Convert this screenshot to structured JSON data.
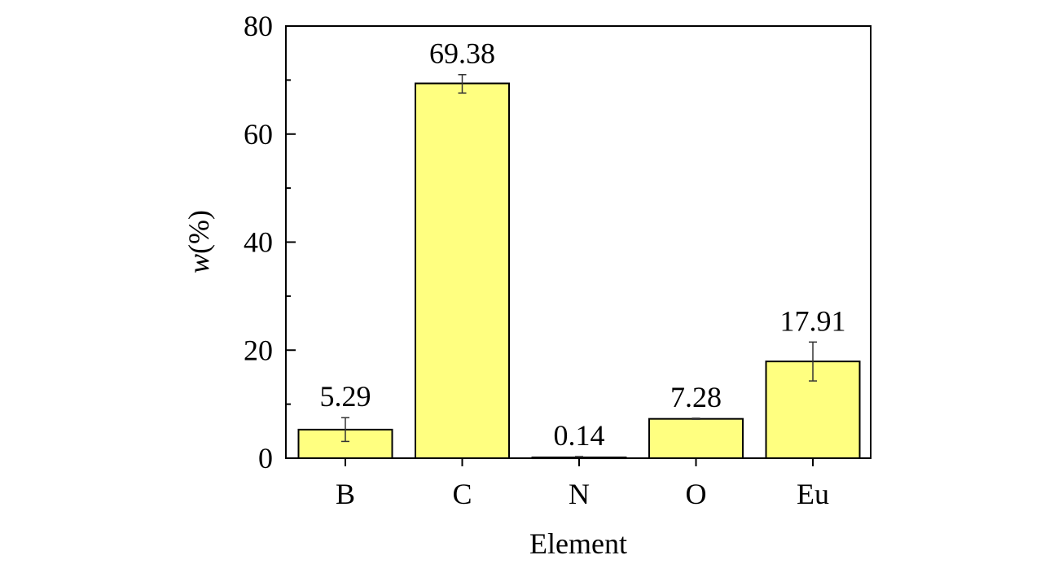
{
  "chart_data": {
    "type": "bar",
    "categories": [
      "B",
      "C",
      "N",
      "O",
      "Eu"
    ],
    "values": [
      5.29,
      69.38,
      0.14,
      7.28,
      17.91
    ],
    "value_labels": [
      "5.29",
      "69.38",
      "0.14",
      "7.28",
      "17.91"
    ],
    "error_bars": [
      [
        3.1,
        7.5
      ],
      [
        67.6,
        71.0
      ],
      [
        0.0,
        0.3
      ],
      [
        7.2,
        7.4
      ],
      [
        14.3,
        21.5
      ]
    ],
    "xlabel": "Element",
    "ylabel_italic": "w",
    "ylabel_rest": "(%)",
    "ylim": [
      0,
      80
    ],
    "yticks": [
      0,
      20,
      40,
      60,
      80
    ],
    "grid": false,
    "colors": {
      "bar_fill": "#FFFF80",
      "bar_stroke": "#000000",
      "axis": "#000000",
      "error_bar": "#333333"
    }
  }
}
